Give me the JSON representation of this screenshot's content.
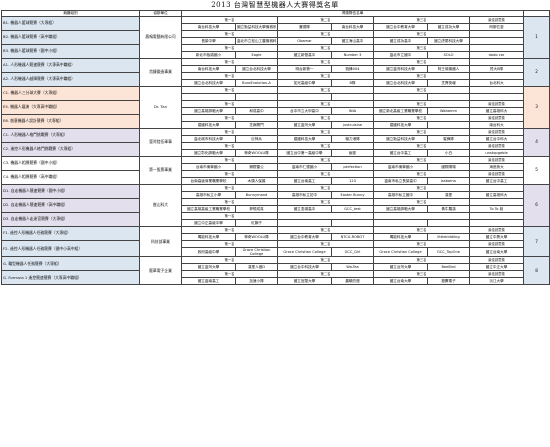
{
  "title": "2013 台灣智慧型機器人大賽得獎名單",
  "header": {
    "category": "競賽組別",
    "organizer": "協辦單位",
    "awards": "得獎隊伍名單"
  },
  "places": {
    "first": "第一名",
    "second": "第二名",
    "third": "第三名",
    "honor": "最佳創意獎"
  },
  "org": {
    "a": "鳳鳴電腦有限公司",
    "b": "貴鍊鍛造事業",
    "c": "臺灣陸伍軍事",
    "d": "第一股票事業",
    "e": "崑山科大",
    "f": "科技部事業",
    "g": "龍華電子企業"
  },
  "rows": {
    "r1": {
      "cat": "B1. 機器人籃球競賽（大專組）",
      "c": [
        "南台科技大學",
        "國立勤益科技大學機械系",
        "賽德隊",
        "南台科技大學",
        "國立台中教育大學",
        "國立成功大學",
        "阿斯匹靈"
      ]
    },
    "r2": {
      "cat": "B2. 機器人籃球競賽（高中職組）",
      "c": [
        "長榮中學",
        "臺北市立松山工農機械科",
        "Obamar",
        "國立海山高中",
        "國立成功高中",
        "國立虎尾科技大學",
        ""
      ]
    },
    "r3": {
      "cat": "B3. 機器人籃球競賽（國中小組）",
      "c": [
        "新北市板橋國小",
        "Eagle",
        "國立新營高中",
        "Number 3",
        "臺北市立國中",
        "SOLO",
        "dodo car"
      ]
    },
    "r4": {
      "cat": "A1. 人形機器人競速競賽（大專高中職組）",
      "c": [
        "南台科技大學",
        "國立台北科技大學",
        "明台新第一",
        "銳鋒004",
        "國立臺灣科技大學",
        "阿王城機器人",
        "賀大B隊"
      ]
    },
    "r5": {
      "cat": "A2. 人形機器人越障競賽（大專高中職組）",
      "c": [
        "國立台北科技大學",
        "BuroEvolution-A",
        "如光高級中學",
        "B隊",
        "國立台北科技大學",
        "芝興快報",
        "台北科大"
      ]
    },
    "r6": {
      "cat": "C1. 機器人三分球大賽（大專組）",
      "c": [
        "",
        "",
        "",
        "",
        "",
        "",
        ""
      ]
    },
    "r7": {
      "cat": "E5. 機器人展演（大專高中職組）",
      "c": [
        "國立高雄師範大學",
        "和成高中",
        "台中市立大甲高中",
        "INIA",
        "國立新北高級工業職業學校",
        "Wabamm",
        "國立高雄科大"
      ]
    },
    "r8": {
      "cat": "E6. 創意機器人設計競賽（大專組）",
      "c": [
        "建國科技大學",
        "芝麻開門",
        "國立臺灣大學",
        "justcuisine",
        "建國科技大學",
        "",
        "南台科大"
      ]
    },
    "r9": {
      "cat": "C1. 人形機器人格鬥挑戰賽（大專組）",
      "c": [
        "臺北城市科技大學",
        "巨神兵",
        "建國科技大學",
        "機力港隊",
        "國立勤益科技大學",
        "蜜蜂隊",
        "國立台中科大"
      ]
    },
    "r10": {
      "cat": "C2. 遙控人形機器人格鬥挑戰賽（大專組）",
      "c": [
        "國立彰化師範大學",
        "神奇WOOLU隊",
        "國立台中第一高級中學",
        "幽靈",
        "國立台中高工",
        "小白",
        "unstopgeble"
      ]
    },
    "r11": {
      "cat": "C3. 機器人相撲競賽（國中小組）",
      "c": [
        "台南市東寧國小",
        "鋼鐵雷公",
        "臺南市仁德國小",
        "perfection",
        "臺南市東寧國小",
        "國際陽場",
        "海底熊大"
      ]
    },
    "r12": {
      "cat": "C4. 機器人相撲競賽（高中職組）",
      "c": [
        "台南高級商業職業學校",
        "木頭人保護",
        "國立台南高工",
        "123",
        "臺南市私立長榮高中",
        "babama",
        "國立台中高工"
      ]
    },
    "r13": {
      "cat": "D1. 自走機器人競速競賽（國中小組）",
      "c": [
        "高雄市私立小學",
        "Bunnymand",
        "高雄市私立初中",
        "Easter Bunny",
        "高雄市私立國中",
        "漢堡",
        "國立高雄科大"
      ]
    },
    "r14": {
      "cat": "D2. 自走機器人競速競賽（高中職組）",
      "c": [
        "國立高雄高級工業職業學校",
        "夢想成真",
        "國立澎湖高中",
        "GCC_test",
        "國立高雄師範大學",
        "黃牛羅漢",
        "To To 姊"
      ]
    },
    "r15": {
      "cat": "D3. 自走機器人走迷宮競賽（大專組）",
      "c": [
        "國立中正高級中學",
        "紅獅子",
        "",
        "",
        "",
        "",
        ""
      ]
    },
    "r16": {
      "cat": "F1. 遙控人形機器人任務競賽（大專組）",
      "c": [
        "萬能科技大學",
        "神奇WOOLU隊",
        "國立台中教育大學",
        "NTCU-ROBOT",
        "萬能科技大學",
        "littlekiddling",
        "國立中興大學"
      ]
    },
    "r17": {
      "cat": "F2. 遙控人形機器人任務競賽（國中小高中組）",
      "c": [
        "政府高級中學",
        "Grace Christian College",
        "Grace Christian College",
        "GCC_Girl",
        "Grace Christian College",
        "GCC_TopOne",
        "國立台南大學"
      ]
    },
    "r18": {
      "cat": "G. 輪型機器人任務競賽（大專組）",
      "c": [
        "國立臺灣大學",
        "漢堡人做D",
        "國立台中科技大學",
        "Wa-Tea",
        "國立台灣大學",
        "BeeBird",
        "國立中正大學"
      ]
    },
    "r19": {
      "cat": "G. Formula 1 遙控競速競賽（大專高中職組）",
      "c": [
        "國立臺南高工",
        "加速小隊",
        "國立宜蘭大學",
        "晨曦的燈",
        "國立台南大學",
        "獵鷹電子",
        "淡江大學"
      ]
    }
  },
  "groups": [
    "1",
    "2",
    "3",
    "4",
    "5",
    "6",
    "7",
    "8"
  ],
  "judges": {
    "j1": "Dr. Tan",
    "j2": "張文良",
    "j3": "黃文良"
  }
}
